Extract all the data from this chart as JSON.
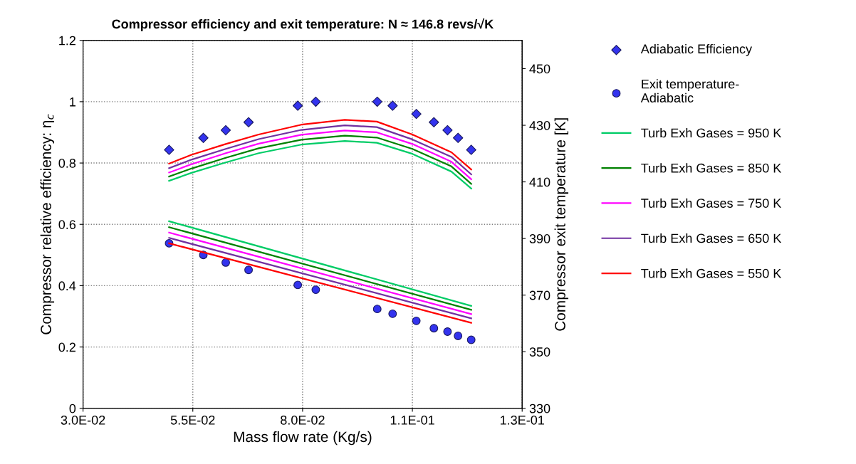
{
  "chart_data": {
    "type": "line",
    "title": "Compressor efficiency and exit temperature: N ≈ 146.8 revs/√K",
    "xlabel": "Mass flow rate (Kg/s)",
    "ylabel": "Compressor relative efficiency: η$_{c}$",
    "y2label": "Compressor exit temperature [K]",
    "xlim": [
      0.03,
      0.13
    ],
    "xticks": [
      {
        "value": 0.03,
        "label": "3.0E-02"
      },
      {
        "value": 0.055,
        "label": "5.5E-02"
      },
      {
        "value": 0.08,
        "label": "8.0E-02"
      },
      {
        "value": 0.105,
        "label": "1.1E-01"
      },
      {
        "value": 0.13,
        "label": "1.3E-01"
      }
    ],
    "ylim": [
      0,
      1.2
    ],
    "yticks": [
      0,
      0.2,
      0.4,
      0.6,
      0.8,
      1,
      1.2
    ],
    "y2lim": [
      330,
      460
    ],
    "y2ticks": [
      330,
      350,
      370,
      390,
      410,
      430,
      450
    ],
    "grid": true,
    "legend": "right",
    "line_style": "solid",
    "series": [
      {
        "name": "Adiabatic Efficiency",
        "type": "scatter",
        "marker": "diamond",
        "color": "#3333ee",
        "x": [
          0.0496,
          0.0574,
          0.0625,
          0.0677,
          0.0789,
          0.083,
          0.097,
          0.1005,
          0.1059,
          0.1099,
          0.113,
          0.1154,
          0.1184
        ],
        "values": [
          0.843,
          0.882,
          0.907,
          0.933,
          0.987,
          1.0,
          1.0,
          0.987,
          0.96,
          0.933,
          0.907,
          0.882,
          0.843
        ]
      },
      {
        "name": "Exit temperature-\nAdiabatic",
        "type": "scatter",
        "marker": "circle",
        "axis": "y2",
        "color": "#3333ee",
        "x": [
          0.0496,
          0.0574,
          0.0625,
          0.0677,
          0.0789,
          0.083,
          0.097,
          0.1005,
          0.1059,
          0.1099,
          0.113,
          0.1154,
          0.1184
        ],
        "values": [
          388.3,
          384.2,
          381.5,
          378.9,
          373.6,
          371.9,
          365.1,
          363.4,
          360.9,
          358.3,
          357.1,
          355.6,
          354.2
        ]
      },
      {
        "name": "Turb Exh Gases = 950 K",
        "color": "#00cc66",
        "x": [
          0.0496,
          0.0547,
          0.0625,
          0.07,
          0.0797,
          0.0896,
          0.0969,
          0.105,
          0.1139,
          0.1184
        ],
        "values": [
          0.742,
          0.768,
          0.802,
          0.832,
          0.86,
          0.872,
          0.866,
          0.83,
          0.772,
          0.717
        ]
      },
      {
        "name": "Turb Exh Gases = 850 K",
        "color": "#008000",
        "x": [
          0.0496,
          0.0547,
          0.0625,
          0.07,
          0.0797,
          0.0896,
          0.0969,
          0.105,
          0.1139,
          0.1184
        ],
        "values": [
          0.756,
          0.782,
          0.817,
          0.848,
          0.876,
          0.889,
          0.883,
          0.846,
          0.789,
          0.732
        ]
      },
      {
        "name": "Turb Exh Gases = 750 K",
        "color": "#ff00ff",
        "x": [
          0.0496,
          0.0547,
          0.0625,
          0.07,
          0.0797,
          0.0896,
          0.0969,
          0.105,
          0.1139,
          0.1184
        ],
        "values": [
          0.769,
          0.796,
          0.832,
          0.863,
          0.892,
          0.906,
          0.9,
          0.862,
          0.804,
          0.747
        ]
      },
      {
        "name": "Turb Exh Gases = 650 K",
        "color": "#7030a0",
        "x": [
          0.0496,
          0.0547,
          0.0625,
          0.07,
          0.0797,
          0.0896,
          0.0969,
          0.105,
          0.1139,
          0.1184
        ],
        "values": [
          0.783,
          0.811,
          0.846,
          0.878,
          0.908,
          0.923,
          0.917,
          0.877,
          0.82,
          0.763
        ]
      },
      {
        "name": "Turb Exh Gases = 550 K",
        "color": "#ff0000",
        "x": [
          0.0496,
          0.0547,
          0.0625,
          0.07,
          0.0797,
          0.0896,
          0.0969,
          0.105,
          0.1139,
          0.1184
        ],
        "values": [
          0.798,
          0.827,
          0.862,
          0.893,
          0.925,
          0.941,
          0.935,
          0.893,
          0.835,
          0.779
        ]
      },
      {
        "axis": "y2",
        "color": "#00cc66",
        "x": [
          0.0496,
          0.1184
        ],
        "values": [
          396.1,
          366.2
        ]
      },
      {
        "axis": "y2",
        "color": "#008000",
        "x": [
          0.0496,
          0.1184
        ],
        "values": [
          394.0,
          364.8
        ]
      },
      {
        "axis": "y2",
        "color": "#ff00ff",
        "x": [
          0.0496,
          0.1184
        ],
        "values": [
          392.1,
          363.3
        ]
      },
      {
        "axis": "y2",
        "color": "#7030a0",
        "x": [
          0.0496,
          0.1184
        ],
        "values": [
          390.2,
          361.8
        ]
      },
      {
        "axis": "y2",
        "color": "#ff0000",
        "x": [
          0.0496,
          0.1184
        ],
        "values": [
          388.3,
          360.2
        ]
      }
    ]
  }
}
